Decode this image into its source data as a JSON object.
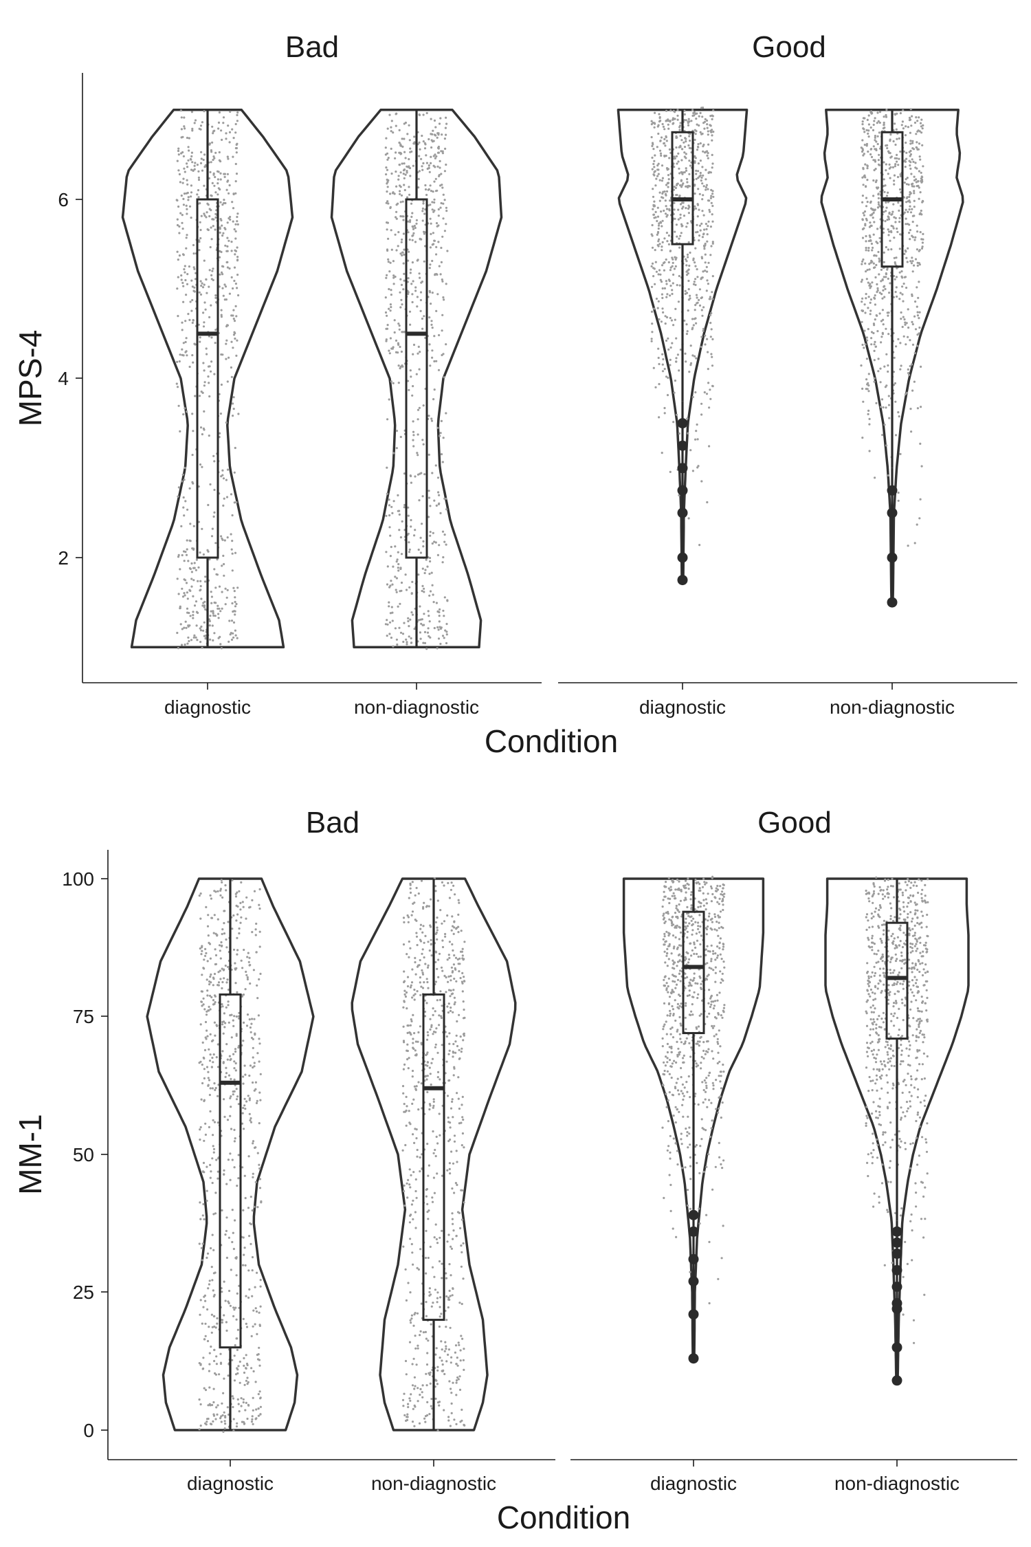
{
  "chart_data": [
    {
      "type": "violin",
      "ylabel": "MPS-4",
      "xlabel": "Condition",
      "ylim": [
        0.6,
        7.35
      ],
      "yticks": [
        2,
        4,
        6
      ],
      "ytick_labels": [
        "2",
        "4",
        "6"
      ],
      "grid": false,
      "panels": [
        {
          "title": "Bad",
          "groups": [
            {
              "label": "diagnostic",
              "box": {
                "q1": 2,
                "median": 4.5,
                "q3": 6,
                "whisker_low": 1,
                "whisker_high": 7
              },
              "outliers": [],
              "density": [
                [
                  1,
                  0.85
                ],
                [
                  1.3,
                  0.8
                ],
                [
                  1.8,
                  0.6
                ],
                [
                  2.4,
                  0.38
                ],
                [
                  3.0,
                  0.25
                ],
                [
                  3.5,
                  0.22
                ],
                [
                  4.0,
                  0.3
                ],
                [
                  4.5,
                  0.5
                ],
                [
                  5.2,
                  0.78
                ],
                [
                  5.8,
                  0.95
                ],
                [
                  6.3,
                  0.9
                ],
                [
                  6.7,
                  0.62
                ],
                [
                  7,
                  0.38
                ]
              ],
              "n": 750
            },
            {
              "label": "non-diagnostic",
              "box": {
                "q1": 2,
                "median": 4.5,
                "q3": 6,
                "whisker_low": 1,
                "whisker_high": 7
              },
              "outliers": [],
              "density": [
                [
                  1,
                  0.7
                ],
                [
                  1.3,
                  0.72
                ],
                [
                  1.8,
                  0.58
                ],
                [
                  2.4,
                  0.38
                ],
                [
                  3.0,
                  0.26
                ],
                [
                  3.5,
                  0.24
                ],
                [
                  4.0,
                  0.3
                ],
                [
                  4.5,
                  0.5
                ],
                [
                  5.2,
                  0.78
                ],
                [
                  5.8,
                  0.95
                ],
                [
                  6.3,
                  0.92
                ],
                [
                  6.7,
                  0.65
                ],
                [
                  7,
                  0.4
                ]
              ],
              "n": 750
            }
          ]
        },
        {
          "title": "Good",
          "groups": [
            {
              "label": "diagnostic",
              "box": {
                "q1": 5.5,
                "median": 6,
                "q3": 6.75,
                "whisker_low": 3.75,
                "whisker_high": 7
              },
              "outliers": [
                3.5,
                3.25,
                3.0,
                2.75,
                2.5,
                2.0,
                1.75
              ],
              "density": [
                [
                  1.75,
                  0.008
                ],
                [
                  2.5,
                  0.015
                ],
                [
                  3.0,
                  0.035
                ],
                [
                  3.5,
                  0.06
                ],
                [
                  4.0,
                  0.13
                ],
                [
                  4.5,
                  0.24
                ],
                [
                  5.0,
                  0.38
                ],
                [
                  5.5,
                  0.55
                ],
                [
                  6.0,
                  0.72
                ],
                [
                  6.25,
                  0.6
                ],
                [
                  6.5,
                  0.68
                ],
                [
                  6.75,
                  0.7
                ],
                [
                  7,
                  0.72
                ]
              ],
              "n": 750
            },
            {
              "label": "non-diagnostic",
              "box": {
                "q1": 5.25,
                "median": 6,
                "q3": 6.75,
                "whisker_low": 3,
                "whisker_high": 7
              },
              "outliers": [
                2.75,
                2.5,
                2.0,
                1.5
              ],
              "density": [
                [
                  1.5,
                  0.008
                ],
                [
                  2.5,
                  0.02
                ],
                [
                  3.0,
                  0.05
                ],
                [
                  3.5,
                  0.1
                ],
                [
                  4.0,
                  0.19
                ],
                [
                  4.5,
                  0.32
                ],
                [
                  5.0,
                  0.5
                ],
                [
                  5.5,
                  0.66
                ],
                [
                  6.0,
                  0.8
                ],
                [
                  6.25,
                  0.72
                ],
                [
                  6.5,
                  0.76
                ],
                [
                  6.75,
                  0.72
                ],
                [
                  7,
                  0.74
                ]
              ],
              "n": 750
            }
          ]
        }
      ]
    },
    {
      "type": "violin",
      "ylabel": "MM-1",
      "xlabel": "Condition",
      "ylim": [
        -5,
        105
      ],
      "yticks": [
        0,
        25,
        50,
        75,
        100
      ],
      "ytick_labels": [
        "0",
        "25",
        "50",
        "75",
        "100"
      ],
      "grid": false,
      "panels": [
        {
          "title": "Bad",
          "groups": [
            {
              "label": "diagnostic",
              "box": {
                "q1": 15,
                "median": 63,
                "q3": 79,
                "whisker_low": 0,
                "whisker_high": 100
              },
              "outliers": [],
              "density": [
                [
                  0,
                  0.62
                ],
                [
                  5,
                  0.72
                ],
                [
                  10,
                  0.75
                ],
                [
                  15,
                  0.68
                ],
                [
                  22,
                  0.5
                ],
                [
                  30,
                  0.32
                ],
                [
                  38,
                  0.26
                ],
                [
                  45,
                  0.3
                ],
                [
                  55,
                  0.5
                ],
                [
                  65,
                  0.8
                ],
                [
                  75,
                  0.93
                ],
                [
                  85,
                  0.78
                ],
                [
                  95,
                  0.48
                ],
                [
                  100,
                  0.35
                ]
              ],
              "n": 750
            },
            {
              "label": "non-diagnostic",
              "box": {
                "q1": 20,
                "median": 62,
                "q3": 79,
                "whisker_low": 0,
                "whisker_high": 100
              },
              "outliers": [],
              "density": [
                [
                  0,
                  0.45
                ],
                [
                  5,
                  0.55
                ],
                [
                  10,
                  0.6
                ],
                [
                  20,
                  0.55
                ],
                [
                  30,
                  0.4
                ],
                [
                  40,
                  0.32
                ],
                [
                  50,
                  0.4
                ],
                [
                  60,
                  0.62
                ],
                [
                  70,
                  0.85
                ],
                [
                  77,
                  0.92
                ],
                [
                  85,
                  0.82
                ],
                [
                  95,
                  0.5
                ],
                [
                  100,
                  0.35
                ]
              ],
              "n": 750
            }
          ]
        },
        {
          "title": "Good",
          "groups": [
            {
              "label": "diagnostic",
              "box": {
                "q1": 72,
                "median": 84,
                "q3": 94,
                "whisker_low": 40,
                "whisker_high": 100
              },
              "outliers": [
                39,
                36,
                31,
                27,
                21,
                13
              ],
              "density": [
                [
                  13,
                  0.008
                ],
                [
                  25,
                  0.015
                ],
                [
                  35,
                  0.04
                ],
                [
                  40,
                  0.07
                ],
                [
                  45,
                  0.1
                ],
                [
                  50,
                  0.15
                ],
                [
                  55,
                  0.22
                ],
                [
                  60,
                  0.3
                ],
                [
                  65,
                  0.4
                ],
                [
                  70,
                  0.55
                ],
                [
                  75,
                  0.65
                ],
                [
                  80,
                  0.74
                ],
                [
                  85,
                  0.76
                ],
                [
                  90,
                  0.78
                ],
                [
                  95,
                  0.78
                ],
                [
                  100,
                  0.78
                ]
              ],
              "n": 750
            },
            {
              "label": "non-diagnostic",
              "box": {
                "q1": 71,
                "median": 82,
                "q3": 92,
                "whisker_low": 38,
                "whisker_high": 100
              },
              "outliers": [
                36,
                34,
                32,
                29,
                26,
                23,
                22,
                15,
                9
              ],
              "density": [
                [
                  9,
                  0.008
                ],
                [
                  20,
                  0.02
                ],
                [
                  30,
                  0.04
                ],
                [
                  38,
                  0.06
                ],
                [
                  45,
                  0.12
                ],
                [
                  50,
                  0.18
                ],
                [
                  55,
                  0.26
                ],
                [
                  60,
                  0.38
                ],
                [
                  65,
                  0.5
                ],
                [
                  70,
                  0.62
                ],
                [
                  75,
                  0.72
                ],
                [
                  80,
                  0.8
                ],
                [
                  85,
                  0.8
                ],
                [
                  90,
                  0.8
                ],
                [
                  95,
                  0.78
                ],
                [
                  100,
                  0.78
                ]
              ],
              "n": 750
            }
          ]
        }
      ]
    }
  ]
}
